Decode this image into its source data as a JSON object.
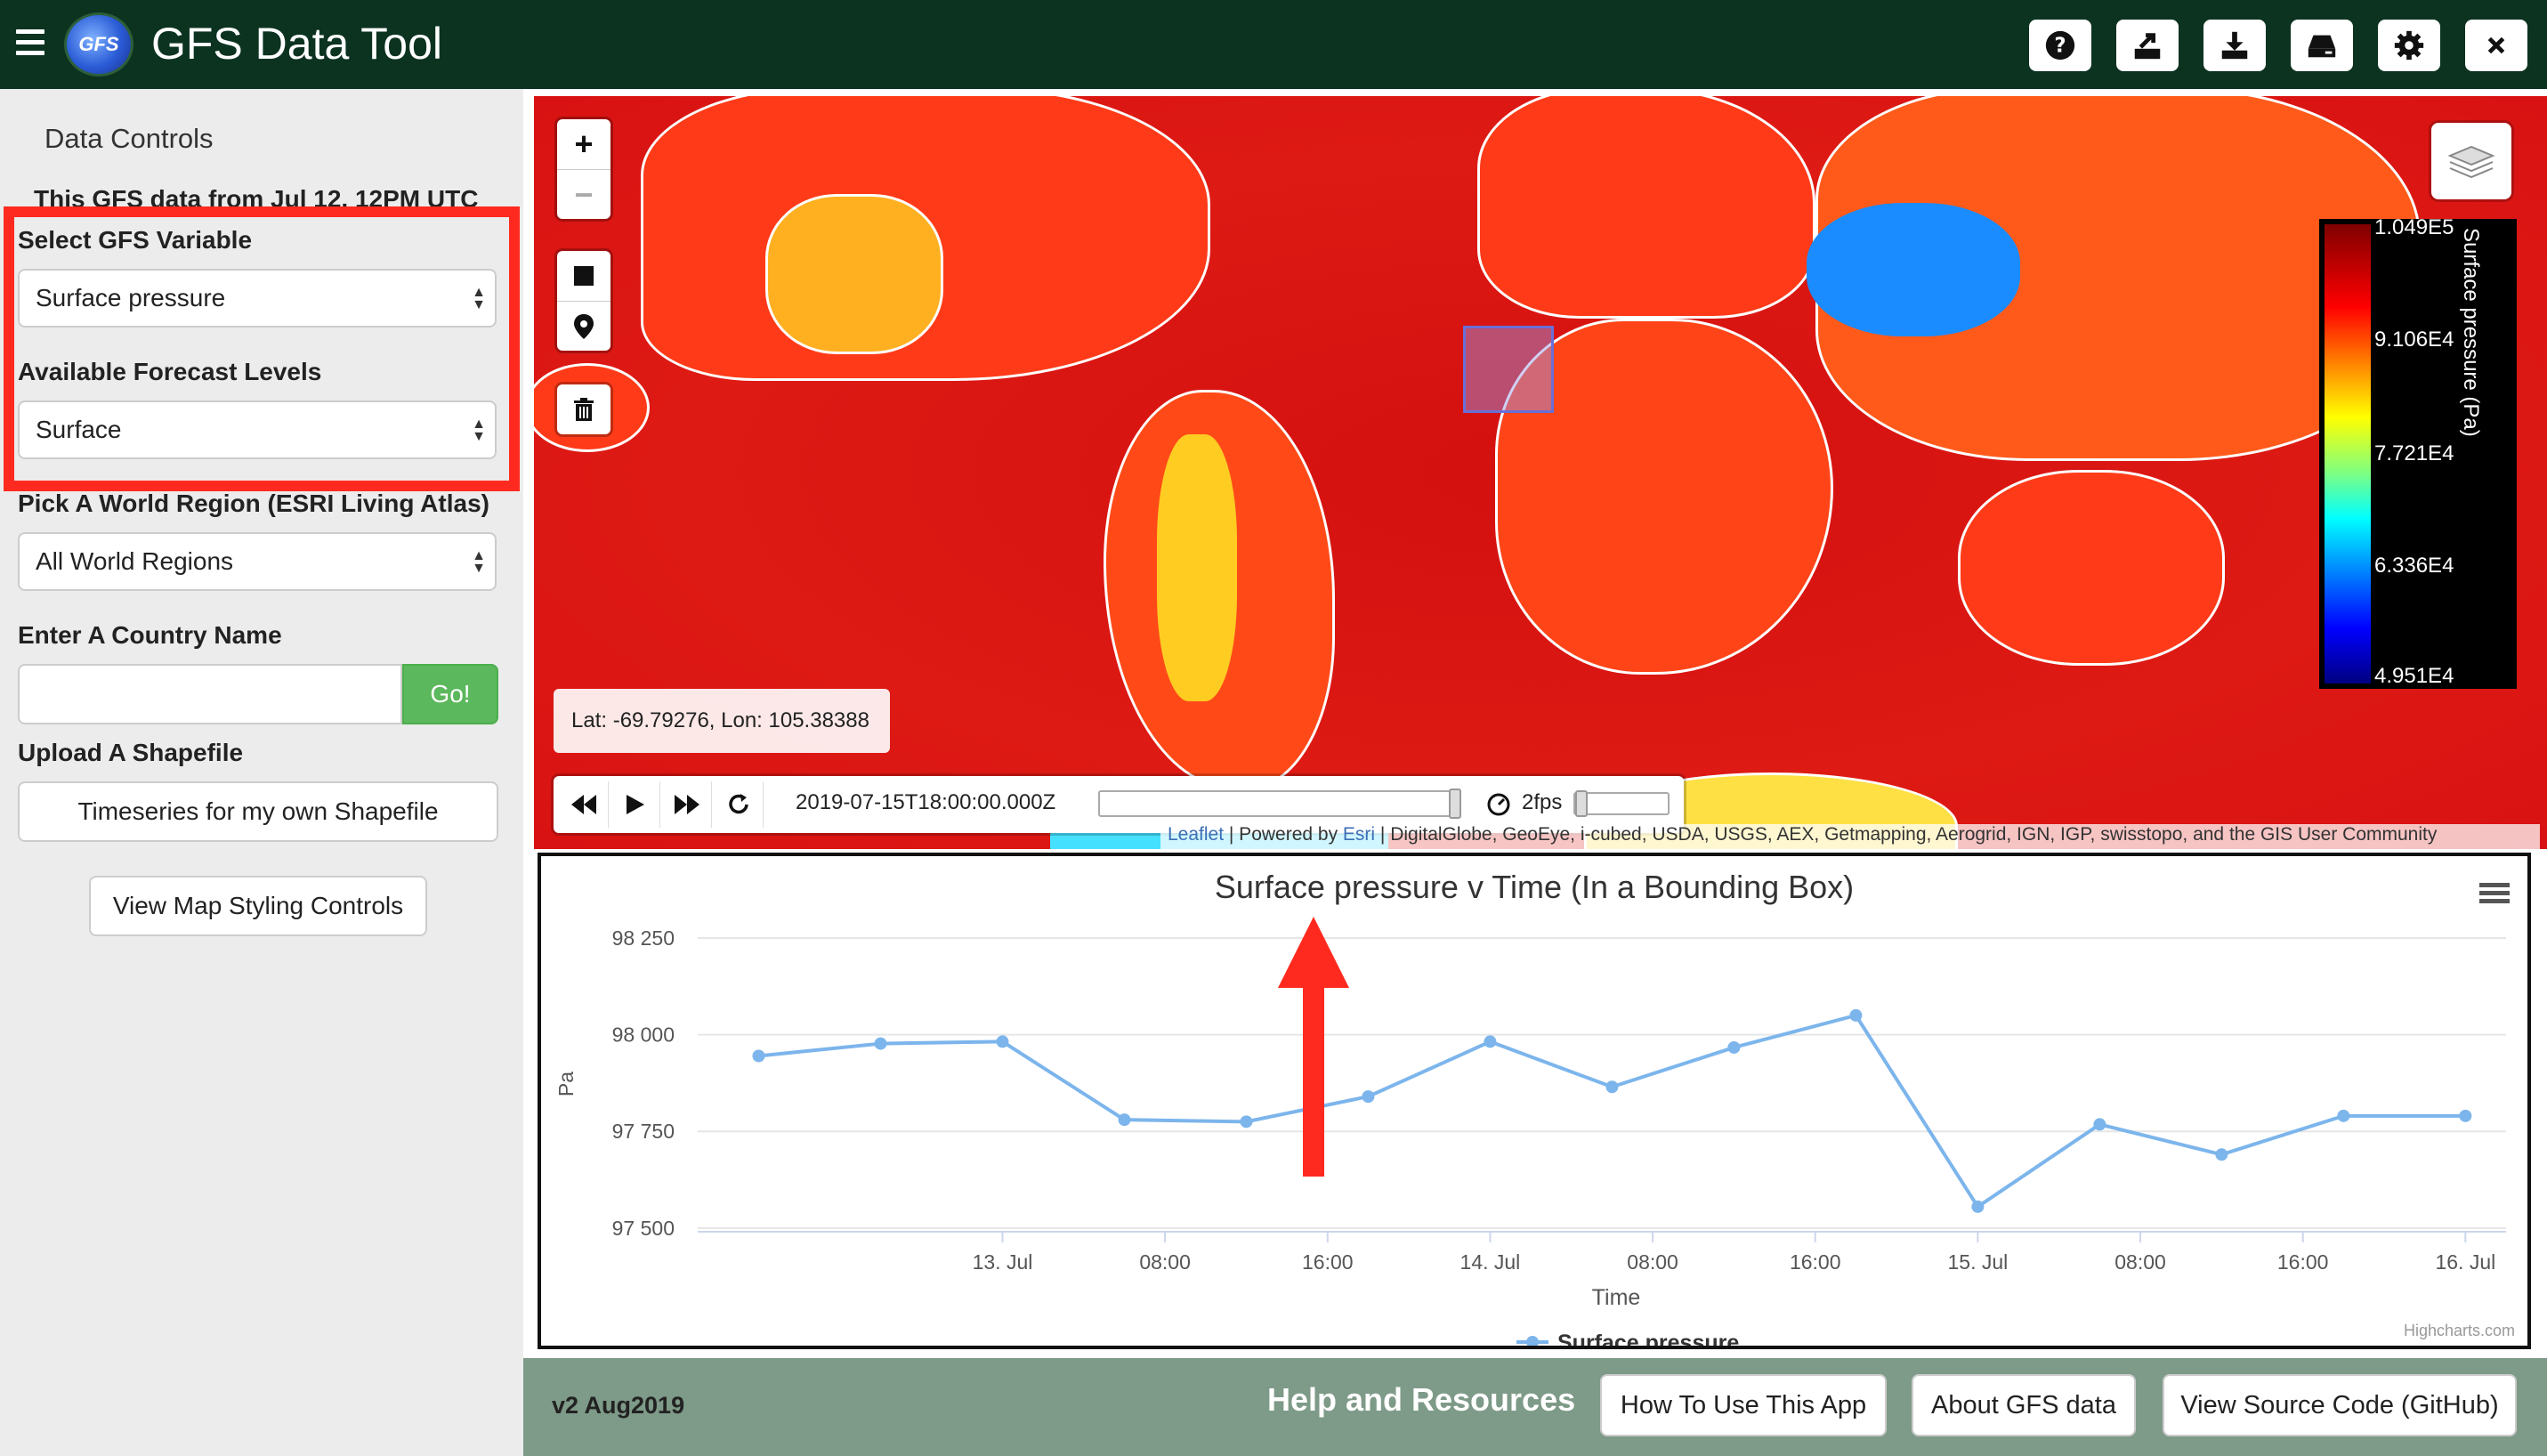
{
  "header": {
    "title": "GFS Data Tool",
    "logo_text": "GFS",
    "buttons": [
      {
        "name": "help-icon"
      },
      {
        "name": "export-icon"
      },
      {
        "name": "download-icon"
      },
      {
        "name": "drive-icon"
      },
      {
        "name": "gear-icon"
      },
      {
        "name": "close-icon"
      }
    ]
  },
  "sidebar": {
    "title": "Data Controls",
    "data_note": "This GFS data from Jul 12, 12PM UTC",
    "variable_label": "Select GFS Variable",
    "variable_value": "Surface pressure",
    "levels_label": "Available Forecast Levels",
    "levels_value": "Surface",
    "region_label": "Pick A World Region (ESRI Living Atlas)",
    "region_value": "All World Regions",
    "country_label": "Enter A Country Name",
    "country_value": "",
    "go_label": "Go!",
    "shapefile_label": "Upload A Shapefile",
    "shapefile_button": "Timeseries for my own Shapefile",
    "styling_button": "View Map Styling Controls"
  },
  "map": {
    "zoom_in": "+",
    "zoom_out": "−",
    "coordinates": "Lat: -69.79276, Lon: 105.38388",
    "colorbar": {
      "ticks": [
        "1.049E5",
        "9.106E4",
        "7.721E4",
        "6.336E4",
        "4.951E4"
      ],
      "title": "Surface pressure (Pa)"
    },
    "time_control": {
      "time": "2019-07-15T18:00:00.000Z",
      "fps": "2fps"
    },
    "attribution": {
      "leaflet": "Leaflet",
      "powered": " | Powered by ",
      "esri": "Esri",
      "rest": " | DigitalGlobe, GeoEye, i-cubed, USDA, USGS, AEX, Getmapping, Aerogrid, IGN, IGP, swisstopo, and the GIS User Community"
    }
  },
  "chart_data": {
    "type": "line",
    "title": "Surface pressure v Time (In a Bounding Box)",
    "xlabel": "Time",
    "ylabel": "Pa",
    "ylim": [
      97500,
      98250
    ],
    "yticks": [
      98250,
      98000,
      97750,
      97500
    ],
    "ytick_labels": [
      "98 250",
      "98 000",
      "97 750",
      "97 500"
    ],
    "x_ticks": [
      "13. Jul",
      "08:00",
      "16:00",
      "14. Jul",
      "08:00",
      "16:00",
      "15. Jul",
      "08:00",
      "16:00",
      "16. Jul"
    ],
    "x_tick_hours": [
      12,
      20,
      28,
      36,
      44,
      52,
      60,
      68,
      76,
      84
    ],
    "series": [
      {
        "name": "Surface pressure",
        "color": "#7cb5ec",
        "x_hours": [
          0,
          6,
          12,
          18,
          24,
          30,
          36,
          42,
          48,
          54,
          60,
          66,
          72,
          78,
          84
        ],
        "values": [
          97945,
          97977,
          97982,
          97780,
          97775,
          97840,
          97982,
          97865,
          97967,
          98050,
          97555,
          97768,
          97690,
          97790,
          97790
        ]
      }
    ],
    "legend_position": "bottom",
    "credits": "Highcharts.com"
  },
  "footer": {
    "version": "v2 Aug2019",
    "help_title": "Help and Resources",
    "buttons": [
      "How To Use This App",
      "About GFS data",
      "View Source Code (GitHub)"
    ]
  },
  "colors": {
    "header_bg": "#0c3320",
    "footer_bg": "#7e9a88",
    "highlight": "#ff2a1f",
    "go_button": "#5cb85c"
  }
}
